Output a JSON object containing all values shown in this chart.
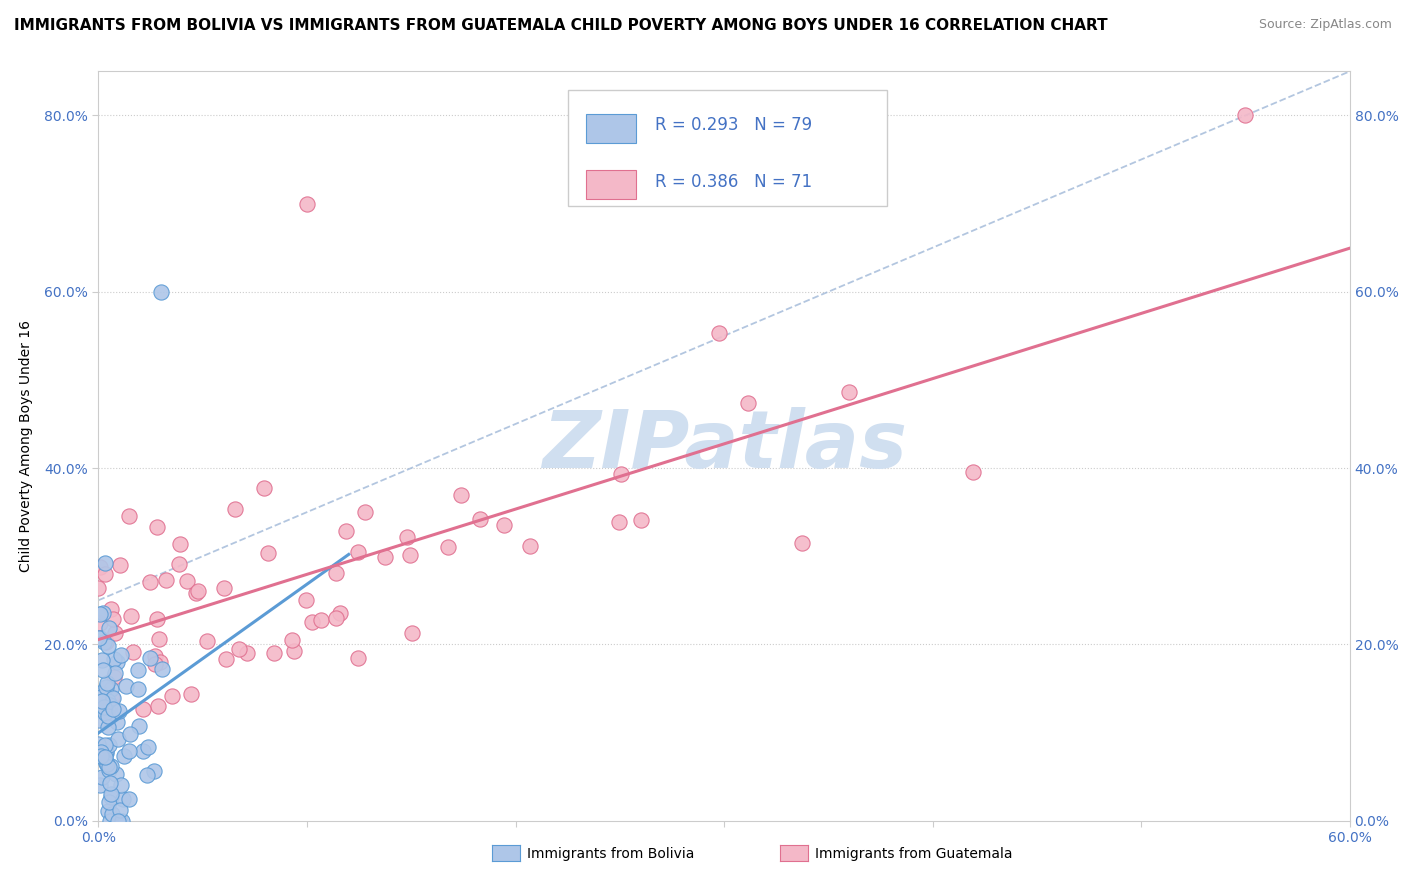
{
  "title": "IMMIGRANTS FROM BOLIVIA VS IMMIGRANTS FROM GUATEMALA CHILD POVERTY AMONG BOYS UNDER 16 CORRELATION CHART",
  "source": "Source: ZipAtlas.com",
  "ylabel": "Child Poverty Among Boys Under 16",
  "xlim": [
    0.0,
    0.6
  ],
  "ylim": [
    0.0,
    0.85
  ],
  "xticks": [
    0.0,
    0.1,
    0.2,
    0.3,
    0.4,
    0.5,
    0.6
  ],
  "yticks": [
    0.0,
    0.2,
    0.4,
    0.6,
    0.8
  ],
  "ytick_labels": [
    "0.0%",
    "20.0%",
    "40.0%",
    "60.0%",
    "80.0%"
  ],
  "xtick_labels": [
    "0.0%",
    "",
    "",
    "",
    "",
    "",
    "60.0%"
  ],
  "bolivia_color": "#aec6e8",
  "bolivia_edge": "#5b9bd5",
  "guatemala_color": "#f4b8c8",
  "guatemala_edge": "#e07090",
  "bolivia_R": 0.293,
  "bolivia_N": 79,
  "guatemala_R": 0.386,
  "guatemala_N": 71,
  "legend_color": "#4472c4",
  "watermark": "ZIPatlas",
  "watermark_color": "#d0dff0",
  "background_color": "#ffffff",
  "grid_color": "#cccccc",
  "title_fontsize": 11,
  "axis_label_fontsize": 10,
  "tick_fontsize": 10,
  "tick_color": "#4472c4"
}
